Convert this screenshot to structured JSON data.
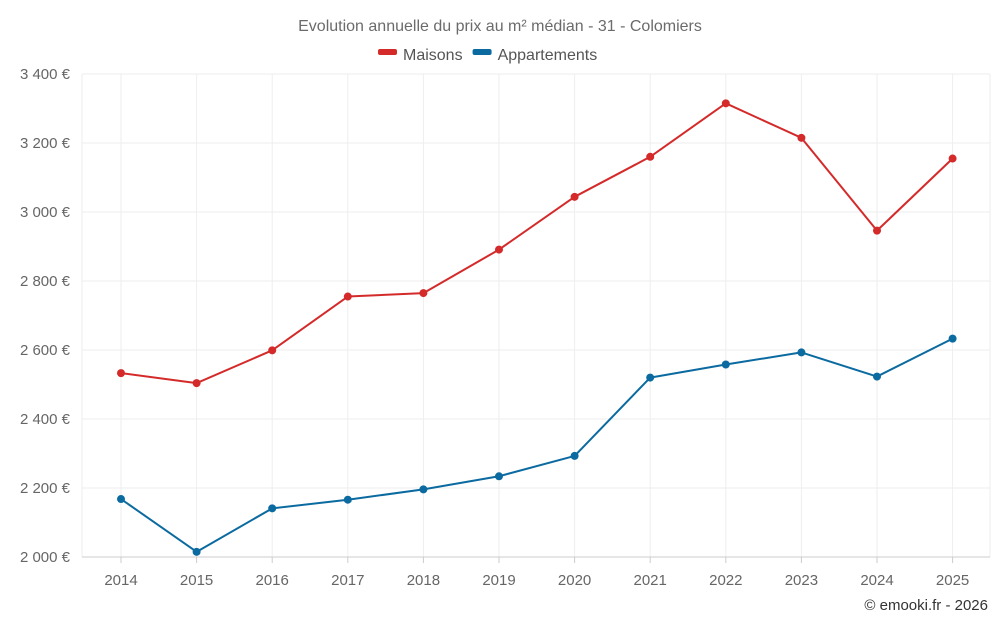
{
  "chart_data": {
    "type": "line",
    "title": "Evolution annuelle du prix au m² médian - 31 - Colomiers",
    "categories": [
      "2014",
      "2015",
      "2016",
      "2017",
      "2018",
      "2019",
      "2020",
      "2021",
      "2022",
      "2023",
      "2024",
      "2025"
    ],
    "series": [
      {
        "name": "Maisons",
        "color": "#d42a2a",
        "values": [
          2533,
          2504,
          2599,
          2755,
          2765,
          2891,
          3044,
          3160,
          3315,
          3215,
          2946,
          3155
        ]
      },
      {
        "name": "Appartements",
        "color": "#0b6aa0",
        "values": [
          2168,
          2015,
          2141,
          2166,
          2196,
          2234,
          2293,
          2520,
          2558,
          2593,
          2523,
          2633
        ]
      }
    ],
    "ylim": [
      2000,
      3400
    ],
    "yticks": [
      2000,
      2200,
      2400,
      2600,
      2800,
      3000,
      3200,
      3400
    ],
    "ytick_labels": [
      "2 000 €",
      "2 200 €",
      "2 400 €",
      "2 600 €",
      "2 800 €",
      "3 000 €",
      "3 200 €",
      "3 400 €"
    ],
    "xlabel": "",
    "ylabel": "",
    "legend_position": "top-center",
    "grid": true
  },
  "credit": "© emooki.fr - 2026"
}
